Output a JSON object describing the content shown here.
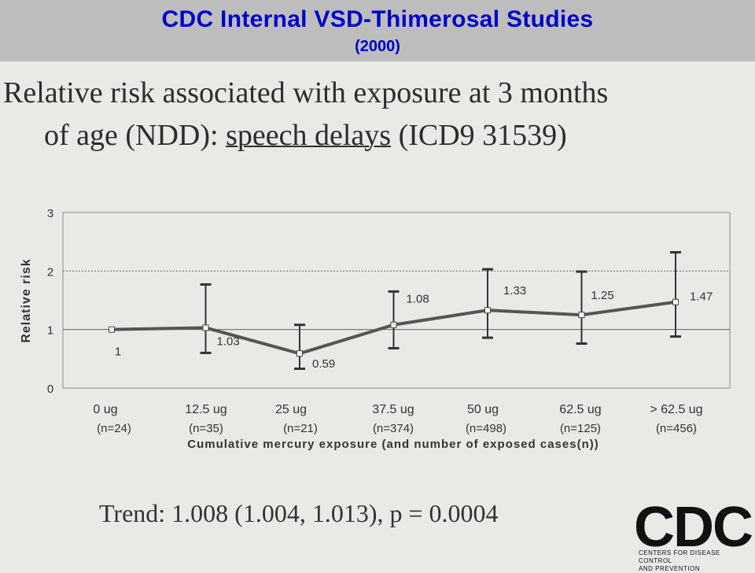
{
  "header": {
    "title": "CDC Internal VSD-Thimerosal Studies",
    "subtitle": "(2000)"
  },
  "headline": {
    "line1": "Relative risk associated with exposure at 3 months",
    "line2_prefix": "of age (NDD): ",
    "line2_underlined": "speech delays",
    "line2_suffix": " (ICD9 31539)"
  },
  "chart_data": {
    "type": "line",
    "ylabel": "Relative risk",
    "xlabel": "Cumulative mercury exposure (and number of exposed cases(n))",
    "ylim": [
      0,
      3
    ],
    "yticks": [
      0,
      1,
      2,
      3
    ],
    "reference_lines": [
      1,
      2
    ],
    "categories": [
      "0 ug",
      "12.5 ug",
      "25 ug",
      "37.5 ug",
      "50 ug",
      "62.5 ug",
      "> 62.5 ug"
    ],
    "n_labels": [
      "(n=24)",
      "(n=35)",
      "(n=21)",
      "(n=374)",
      "(n=498)",
      "(n=125)",
      "(n=456)"
    ],
    "values": [
      1,
      1.03,
      0.59,
      1.08,
      1.33,
      1.25,
      1.47
    ],
    "value_labels": [
      "1",
      "1.03",
      "0.59",
      "1.08",
      "1.33",
      "1.25",
      "1.47"
    ],
    "error_low": [
      null,
      0.6,
      0.33,
      0.68,
      0.86,
      0.76,
      0.88
    ],
    "error_high": [
      null,
      1.77,
      1.08,
      1.65,
      2.03,
      1.99,
      2.32
    ]
  },
  "trend": "Trend: 1.008 (1.004, 1.013), p = 0.0004",
  "logo": {
    "text": "CDC",
    "sub1": "CENTERS FOR DISEASE CONTROL",
    "sub2": "AND PREVENTION"
  },
  "colors": {
    "title": "#0000cc",
    "header_bg": "#bdbdbd",
    "line": "#555555"
  }
}
